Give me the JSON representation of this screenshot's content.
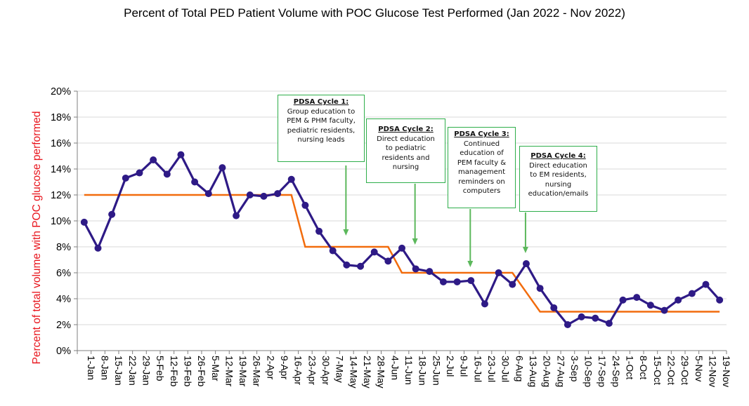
{
  "chart_data": {
    "type": "line",
    "title": "Percent of Total PED Patient Volume with POC Glucose Test Performed (Jan 2022 - Nov 2022)",
    "ylabel": "Percent  of total volume with POC glucose performed",
    "xlabel": "",
    "ylim": [
      0,
      20
    ],
    "yticks": [
      "0%",
      "2%",
      "4%",
      "6%",
      "8%",
      "10%",
      "12%",
      "14%",
      "16%",
      "18%",
      "20%"
    ],
    "grid": "horizontal",
    "categories": [
      "1-Jan",
      "8-Jan",
      "15-Jan",
      "22-Jan",
      "29-Jan",
      "5-Feb",
      "12-Feb",
      "19-Feb",
      "26-Feb",
      "5-Mar",
      "12-Mar",
      "19-Mar",
      "26-Mar",
      "2-Apr",
      "9-Apr",
      "16-Apr",
      "23-Apr",
      "30-Apr",
      "7-May",
      "14-May",
      "21-May",
      "28-May",
      "4-Jun",
      "11-Jun",
      "18-Jun",
      "25-Jun",
      "2-Jul",
      "9-Jul",
      "16-Jul",
      "23-Jul",
      "30-Jul",
      "6-Aug",
      "13-Aug",
      "20-Aug",
      "27-Aug",
      "3-Sep",
      "10-Sep",
      "17-Sep",
      "24-Sep",
      "1-Oct",
      "8-Oct",
      "15-Oct",
      "22-Oct",
      "29-Oct",
      "5-Nov",
      "12-Nov",
      "19-Nov"
    ],
    "series": [
      {
        "color": "#2e1a86",
        "values": [
          9.9,
          7.9,
          10.5,
          13.3,
          13.7,
          14.7,
          13.6,
          15.1,
          13.0,
          12.1,
          14.1,
          10.4,
          12.0,
          11.9,
          12.1,
          13.2,
          11.2,
          9.2,
          7.7,
          6.6,
          6.5,
          7.6,
          6.9,
          7.9,
          6.3,
          6.1,
          5.3,
          5.3,
          5.4,
          3.6,
          6.0,
          5.1,
          6.7,
          4.8,
          3.3,
          2.0,
          2.6,
          2.5,
          2.1,
          3.9,
          4.1,
          3.5,
          3.1,
          3.9,
          4.4,
          5.1,
          3.9
        ]
      },
      {
        "color": "#f26c0d",
        "type": "step",
        "segments": [
          {
            "from": "1-Jan",
            "to": "16-Apr",
            "value": 12
          },
          {
            "from": "23-Apr",
            "to": "4-Jun",
            "value": 8
          },
          {
            "from": "11-Jun",
            "to": "6-Aug",
            "value": 6
          },
          {
            "from": "20-Aug",
            "to": "19-Nov",
            "value": 3
          }
        ]
      }
    ],
    "annotations": [
      {
        "title": "PDSA Cycle 1:",
        "text": [
          "Group education to",
          "PEM & PHM faculty,",
          "pediatric residents,",
          "nursing leads"
        ],
        "arrow_to": "14-May"
      },
      {
        "title": "PDSA Cycle 2:",
        "text": [
          "Direct education",
          "to pediatric",
          "residents and",
          "nursing"
        ],
        "arrow_to": "18-Jun"
      },
      {
        "title": "PDSA Cycle 3:",
        "text": [
          "Continued",
          "education of",
          "PEM faculty &",
          "management",
          "reminders on",
          "computers"
        ],
        "arrow_to": "16-Jul"
      },
      {
        "title": "PDSA Cycle 4:",
        "text": [
          "Direct education",
          "to EM residents,",
          "nursing",
          "education/emails"
        ],
        "arrow_to": "13-Aug"
      }
    ],
    "colors": {
      "data_line": "#2e1a86",
      "step_line": "#f26c0d",
      "annotation_border": "#2eae4a",
      "arrow": "#5cb85c",
      "ylabel": "#e8141c"
    }
  }
}
